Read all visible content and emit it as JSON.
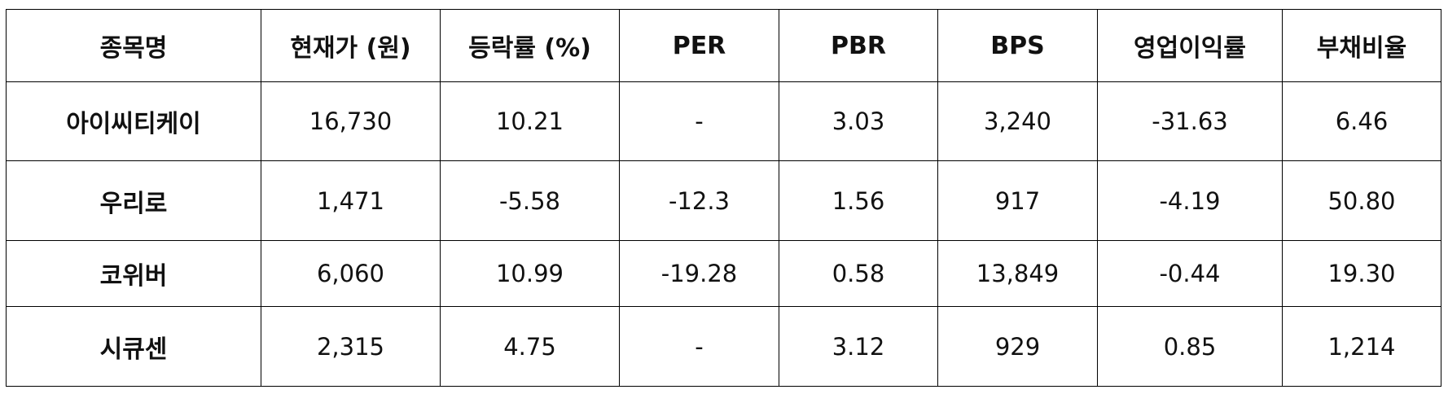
{
  "table": {
    "header": [
      "종목명",
      "현재가 (원)",
      "등락률 (%)",
      "PER",
      "PBR",
      "BPS",
      "영업이익률",
      "부채비율"
    ],
    "rows": [
      [
        "아이씨티케이",
        "16,730",
        "10.21",
        "-",
        "3.03",
        "3,240",
        "-31.63",
        "6.46"
      ],
      [
        "우리로",
        "1,471",
        "-5.58",
        "-12.3",
        "1.56",
        "917",
        "-4.19",
        "50.80"
      ],
      [
        "코위버",
        "6,060",
        "10.99",
        "-19.28",
        "0.58",
        "13,849",
        "-0.44",
        "19.30"
      ],
      [
        "시큐센",
        "2,315",
        "4.75",
        "-",
        "3.12",
        "929",
        "0.85",
        "1,214"
      ]
    ]
  }
}
